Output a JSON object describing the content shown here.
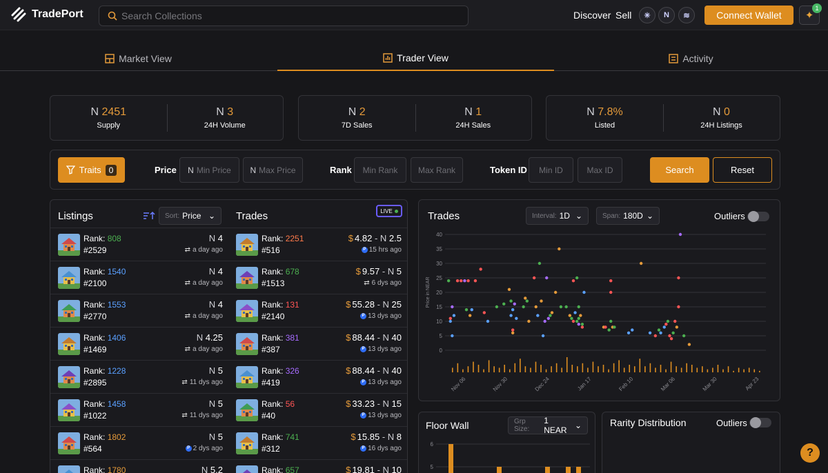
{
  "app": {
    "name": "TradePort"
  },
  "header": {
    "search_placeholder": "Search Collections",
    "nav": [
      "Discover",
      "Sell"
    ],
    "chains": [
      "aptos-icon",
      "near-icon",
      "sui-icon"
    ],
    "connect_label": "Connect Wallet",
    "notification_count": "1"
  },
  "tabs": [
    {
      "label": "Market View",
      "icon": "grid-icon"
    },
    {
      "label": "Trader View",
      "icon": "chart-icon",
      "active": true
    },
    {
      "label": "Activity",
      "icon": "activity-icon"
    }
  ],
  "stats": [
    {
      "value": "2451",
      "label": "Supply"
    },
    {
      "value": "3",
      "label": "24H Volume"
    },
    {
      "value": "2",
      "label": "7D Sales"
    },
    {
      "value": "1",
      "label": "24H Sales"
    },
    {
      "value": "7.8%",
      "label": "Listed"
    },
    {
      "value": "0",
      "label": "24H Listings"
    }
  ],
  "filters": {
    "traits_label": "Traits",
    "traits_count": "0",
    "price_label": "Price",
    "min_price": "Min Price",
    "max_price": "Max Price",
    "rank_label": "Rank",
    "min_rank": "Min Rank",
    "max_rank": "Max Rank",
    "token_label": "Token ID",
    "min_id": "Min ID",
    "max_id": "Max ID",
    "search_label": "Search",
    "reset_label": "Reset"
  },
  "listings": {
    "title": "Listings",
    "sort_label": "Sort:",
    "sort_value": "Price",
    "rank_label": "Rank:",
    "items": [
      {
        "rank": "808",
        "rank_color": "#4caf50",
        "token": "#2529",
        "price": "4",
        "time": "a day ago",
        "market": "swap"
      },
      {
        "rank": "1540",
        "rank_color": "#5aa0ff",
        "token": "#2100",
        "price": "4",
        "time": "a day ago",
        "market": "swap"
      },
      {
        "rank": "1553",
        "rank_color": "#5aa0ff",
        "token": "#2770",
        "price": "4",
        "time": "a day ago",
        "market": "swap"
      },
      {
        "rank": "1406",
        "rank_color": "#5aa0ff",
        "token": "#1469",
        "price": "4.25",
        "time": "a day ago",
        "market": "swap"
      },
      {
        "rank": "1228",
        "rank_color": "#5aa0ff",
        "token": "#2895",
        "price": "5",
        "time": "11 dys ago",
        "market": "swap"
      },
      {
        "rank": "1458",
        "rank_color": "#5aa0ff",
        "token": "#1022",
        "price": "5",
        "time": "11 dys ago",
        "market": "swap"
      },
      {
        "rank": "1802",
        "rank_color": "#e49a3a",
        "token": "#564",
        "price": "5",
        "time": "2 dys ago",
        "market": "p"
      },
      {
        "rank": "1780",
        "rank_color": "#e49a3a",
        "token": "",
        "price": "5.2",
        "time": "",
        "market": "swap"
      }
    ]
  },
  "trades": {
    "title": "Trades",
    "live_label": "LIVE",
    "rank_label": "Rank:",
    "items": [
      {
        "rank": "2251",
        "rank_color": "#ff7a4a",
        "token": "#516",
        "usd": "4.82",
        "near": "2.5",
        "time": "15 hrs ago",
        "market": "p"
      },
      {
        "rank": "678",
        "rank_color": "#4caf50",
        "token": "#1513",
        "usd": "9.57",
        "near": "5",
        "time": "6 dys ago",
        "market": "swap"
      },
      {
        "rank": "131",
        "rank_color": "#ff5555",
        "token": "#2140",
        "usd": "55.28",
        "near": "25",
        "time": "13 dys ago",
        "market": "p"
      },
      {
        "rank": "381",
        "rank_color": "#a66bff",
        "token": "#387",
        "usd": "88.44",
        "near": "40",
        "time": "13 dys ago",
        "market": "p"
      },
      {
        "rank": "326",
        "rank_color": "#a66bff",
        "token": "#419",
        "usd": "88.44",
        "near": "40",
        "time": "13 dys ago",
        "market": "p"
      },
      {
        "rank": "56",
        "rank_color": "#ff5555",
        "token": "#40",
        "usd": "33.23",
        "near": "15",
        "time": "13 dys ago",
        "market": "p"
      },
      {
        "rank": "741",
        "rank_color": "#4caf50",
        "token": "#312",
        "usd": "15.85",
        "near": "8",
        "time": "16 dys ago",
        "market": "p"
      },
      {
        "rank": "657",
        "rank_color": "#4caf50",
        "token": "",
        "usd": "19.81",
        "near": "10",
        "time": "",
        "market": "p"
      }
    ]
  },
  "trade_chart": {
    "title": "Trades",
    "interval_label": "Interval:",
    "interval_value": "1D",
    "span_label": "Span:",
    "span_value": "180D",
    "outliers_label": "Outliers"
  },
  "floor_wall": {
    "title": "Floor Wall",
    "grp_label": "Grp Size:",
    "grp_value": "1 NEAR"
  },
  "rarity": {
    "title": "Rarity Distribution",
    "outliers_label": "Outliers"
  },
  "chart_data": [
    {
      "type": "scatter",
      "title": "",
      "ylabel": "Price in NEAR",
      "ylim": [
        0,
        40
      ],
      "yticks": [
        "0",
        "5",
        "10",
        "15",
        "20",
        "25",
        "30",
        "35",
        "40"
      ],
      "xticks": [
        "Nov 06",
        "Nov 30",
        "Dec 24",
        "Jan 17",
        "Feb 10",
        "Mar 06",
        "Mar 30",
        "Apr 23"
      ],
      "x_day_range": [
        0,
        180
      ],
      "points": [
        [
          2,
          24,
          "#4caf50"
        ],
        [
          3,
          10,
          "#5aa0ff"
        ],
        [
          3,
          11,
          "#ff5555"
        ],
        [
          4,
          15,
          "#a66bff"
        ],
        [
          4,
          5,
          "#5aa0ff"
        ],
        [
          5,
          12,
          "#5aa0ff"
        ],
        [
          7,
          24,
          "#ff5555"
        ],
        [
          9,
          24,
          "#ff5555"
        ],
        [
          11,
          24,
          "#a66bff"
        ],
        [
          12,
          14,
          "#4caf50"
        ],
        [
          13,
          24,
          "#ff5555"
        ],
        [
          14,
          12,
          "#e49a3a"
        ],
        [
          15,
          14,
          "#5aa0ff"
        ],
        [
          17,
          24,
          "#ff5555"
        ],
        [
          20,
          28,
          "#ff5555"
        ],
        [
          22,
          13,
          "#ff5555"
        ],
        [
          24,
          10,
          "#5aa0ff"
        ],
        [
          29,
          15,
          "#4caf50"
        ],
        [
          33,
          16,
          "#4caf50"
        ],
        [
          36,
          21,
          "#e49a3a"
        ],
        [
          37,
          17,
          "#4caf50"
        ],
        [
          37,
          12,
          "#5aa0ff"
        ],
        [
          38,
          7,
          "#ff5555"
        ],
        [
          38,
          6,
          "#e49a3a"
        ],
        [
          38,
          14,
          "#5aa0ff"
        ],
        [
          39,
          16,
          "#a66bff"
        ],
        [
          40,
          11,
          "#5aa0ff"
        ],
        [
          44,
          15,
          "#4caf50"
        ],
        [
          45,
          18,
          "#e49a3a"
        ],
        [
          46,
          17,
          "#4caf50"
        ],
        [
          47,
          10,
          "#e49a3a"
        ],
        [
          50,
          25,
          "#ff5555"
        ],
        [
          51,
          15,
          "#e49a3a"
        ],
        [
          52,
          12,
          "#5aa0ff"
        ],
        [
          53,
          30,
          "#4caf50"
        ],
        [
          54,
          17,
          "#e49a3a"
        ],
        [
          55,
          5,
          "#5aa0ff"
        ],
        [
          56,
          10,
          "#a66bff"
        ],
        [
          57,
          25,
          "#a66bff"
        ],
        [
          58,
          11,
          "#a66bff"
        ],
        [
          59,
          12,
          "#4caf50"
        ],
        [
          60,
          13,
          "#e49a3a"
        ],
        [
          62,
          20,
          "#e49a3a"
        ],
        [
          64,
          35,
          "#e49a3a"
        ],
        [
          65,
          15,
          "#4caf50"
        ],
        [
          68,
          15,
          "#4caf50"
        ],
        [
          70,
          12,
          "#e49a3a"
        ],
        [
          71,
          11,
          "#4caf50"
        ],
        [
          72,
          10,
          "#ff5555"
        ],
        [
          72,
          24,
          "#ff5555"
        ],
        [
          73,
          13,
          "#5aa0ff"
        ],
        [
          74,
          25,
          "#4caf50"
        ],
        [
          74,
          10,
          "#4caf50"
        ],
        [
          75,
          9,
          "#a66bff"
        ],
        [
          75,
          11,
          "#4caf50"
        ],
        [
          75,
          15,
          "#4caf50"
        ],
        [
          76,
          12,
          "#e49a3a"
        ],
        [
          77,
          8,
          "#ff5555"
        ],
        [
          77,
          9,
          "#4caf50"
        ],
        [
          78,
          20,
          "#5aa0ff"
        ],
        [
          89,
          8,
          "#e49a3a"
        ],
        [
          90,
          8,
          "#ff5555"
        ],
        [
          92,
          7,
          "#4caf50"
        ],
        [
          93,
          24,
          "#ff5555"
        ],
        [
          93,
          20,
          "#ff5555"
        ],
        [
          93,
          10,
          "#4caf50"
        ],
        [
          94,
          8,
          "#e49a3a"
        ],
        [
          95,
          8,
          "#4caf50"
        ],
        [
          103,
          6,
          "#5aa0ff"
        ],
        [
          105,
          7,
          "#5aa0ff"
        ],
        [
          110,
          30,
          "#e49a3a"
        ],
        [
          115,
          6,
          "#5aa0ff"
        ],
        [
          118,
          5,
          "#ff5555"
        ],
        [
          120,
          7,
          "#4caf50"
        ],
        [
          121,
          6,
          "#5aa0ff"
        ],
        [
          123,
          8,
          "#5aa0ff"
        ],
        [
          124,
          9,
          "#ff5555"
        ],
        [
          125,
          10,
          "#4caf50"
        ],
        [
          126,
          5,
          "#ff5555"
        ],
        [
          127,
          4,
          "#ff5555"
        ],
        [
          128,
          6,
          "#4caf50"
        ],
        [
          129,
          10,
          "#ff5555"
        ],
        [
          130,
          8,
          "#e49a3a"
        ],
        [
          131,
          15,
          "#ff5555"
        ],
        [
          131,
          25,
          "#ff5555"
        ],
        [
          132,
          40,
          "#a66bff"
        ],
        [
          134,
          5,
          "#4caf50"
        ],
        [
          137,
          2,
          "#e49a3a"
        ]
      ],
      "volume_bars": [
        3,
        6,
        2,
        4,
        7,
        5,
        2,
        8,
        4,
        3,
        5,
        2,
        6,
        9,
        4,
        3,
        7,
        5,
        2,
        4,
        6,
        3,
        10,
        5,
        4,
        6,
        3,
        7,
        4,
        5,
        2,
        6,
        8,
        3,
        5,
        4,
        9,
        4,
        6,
        3,
        5,
        2,
        7,
        4,
        3,
        6,
        5,
        3,
        4,
        2,
        3,
        5,
        2,
        4,
        1,
        3,
        2,
        3,
        2,
        1
      ]
    },
    {
      "type": "bar",
      "title": "",
      "ylim": [
        4,
        6
      ],
      "yticks": [
        "5",
        "6"
      ],
      "values": [
        6,
        5,
        5,
        5,
        5
      ]
    }
  ]
}
